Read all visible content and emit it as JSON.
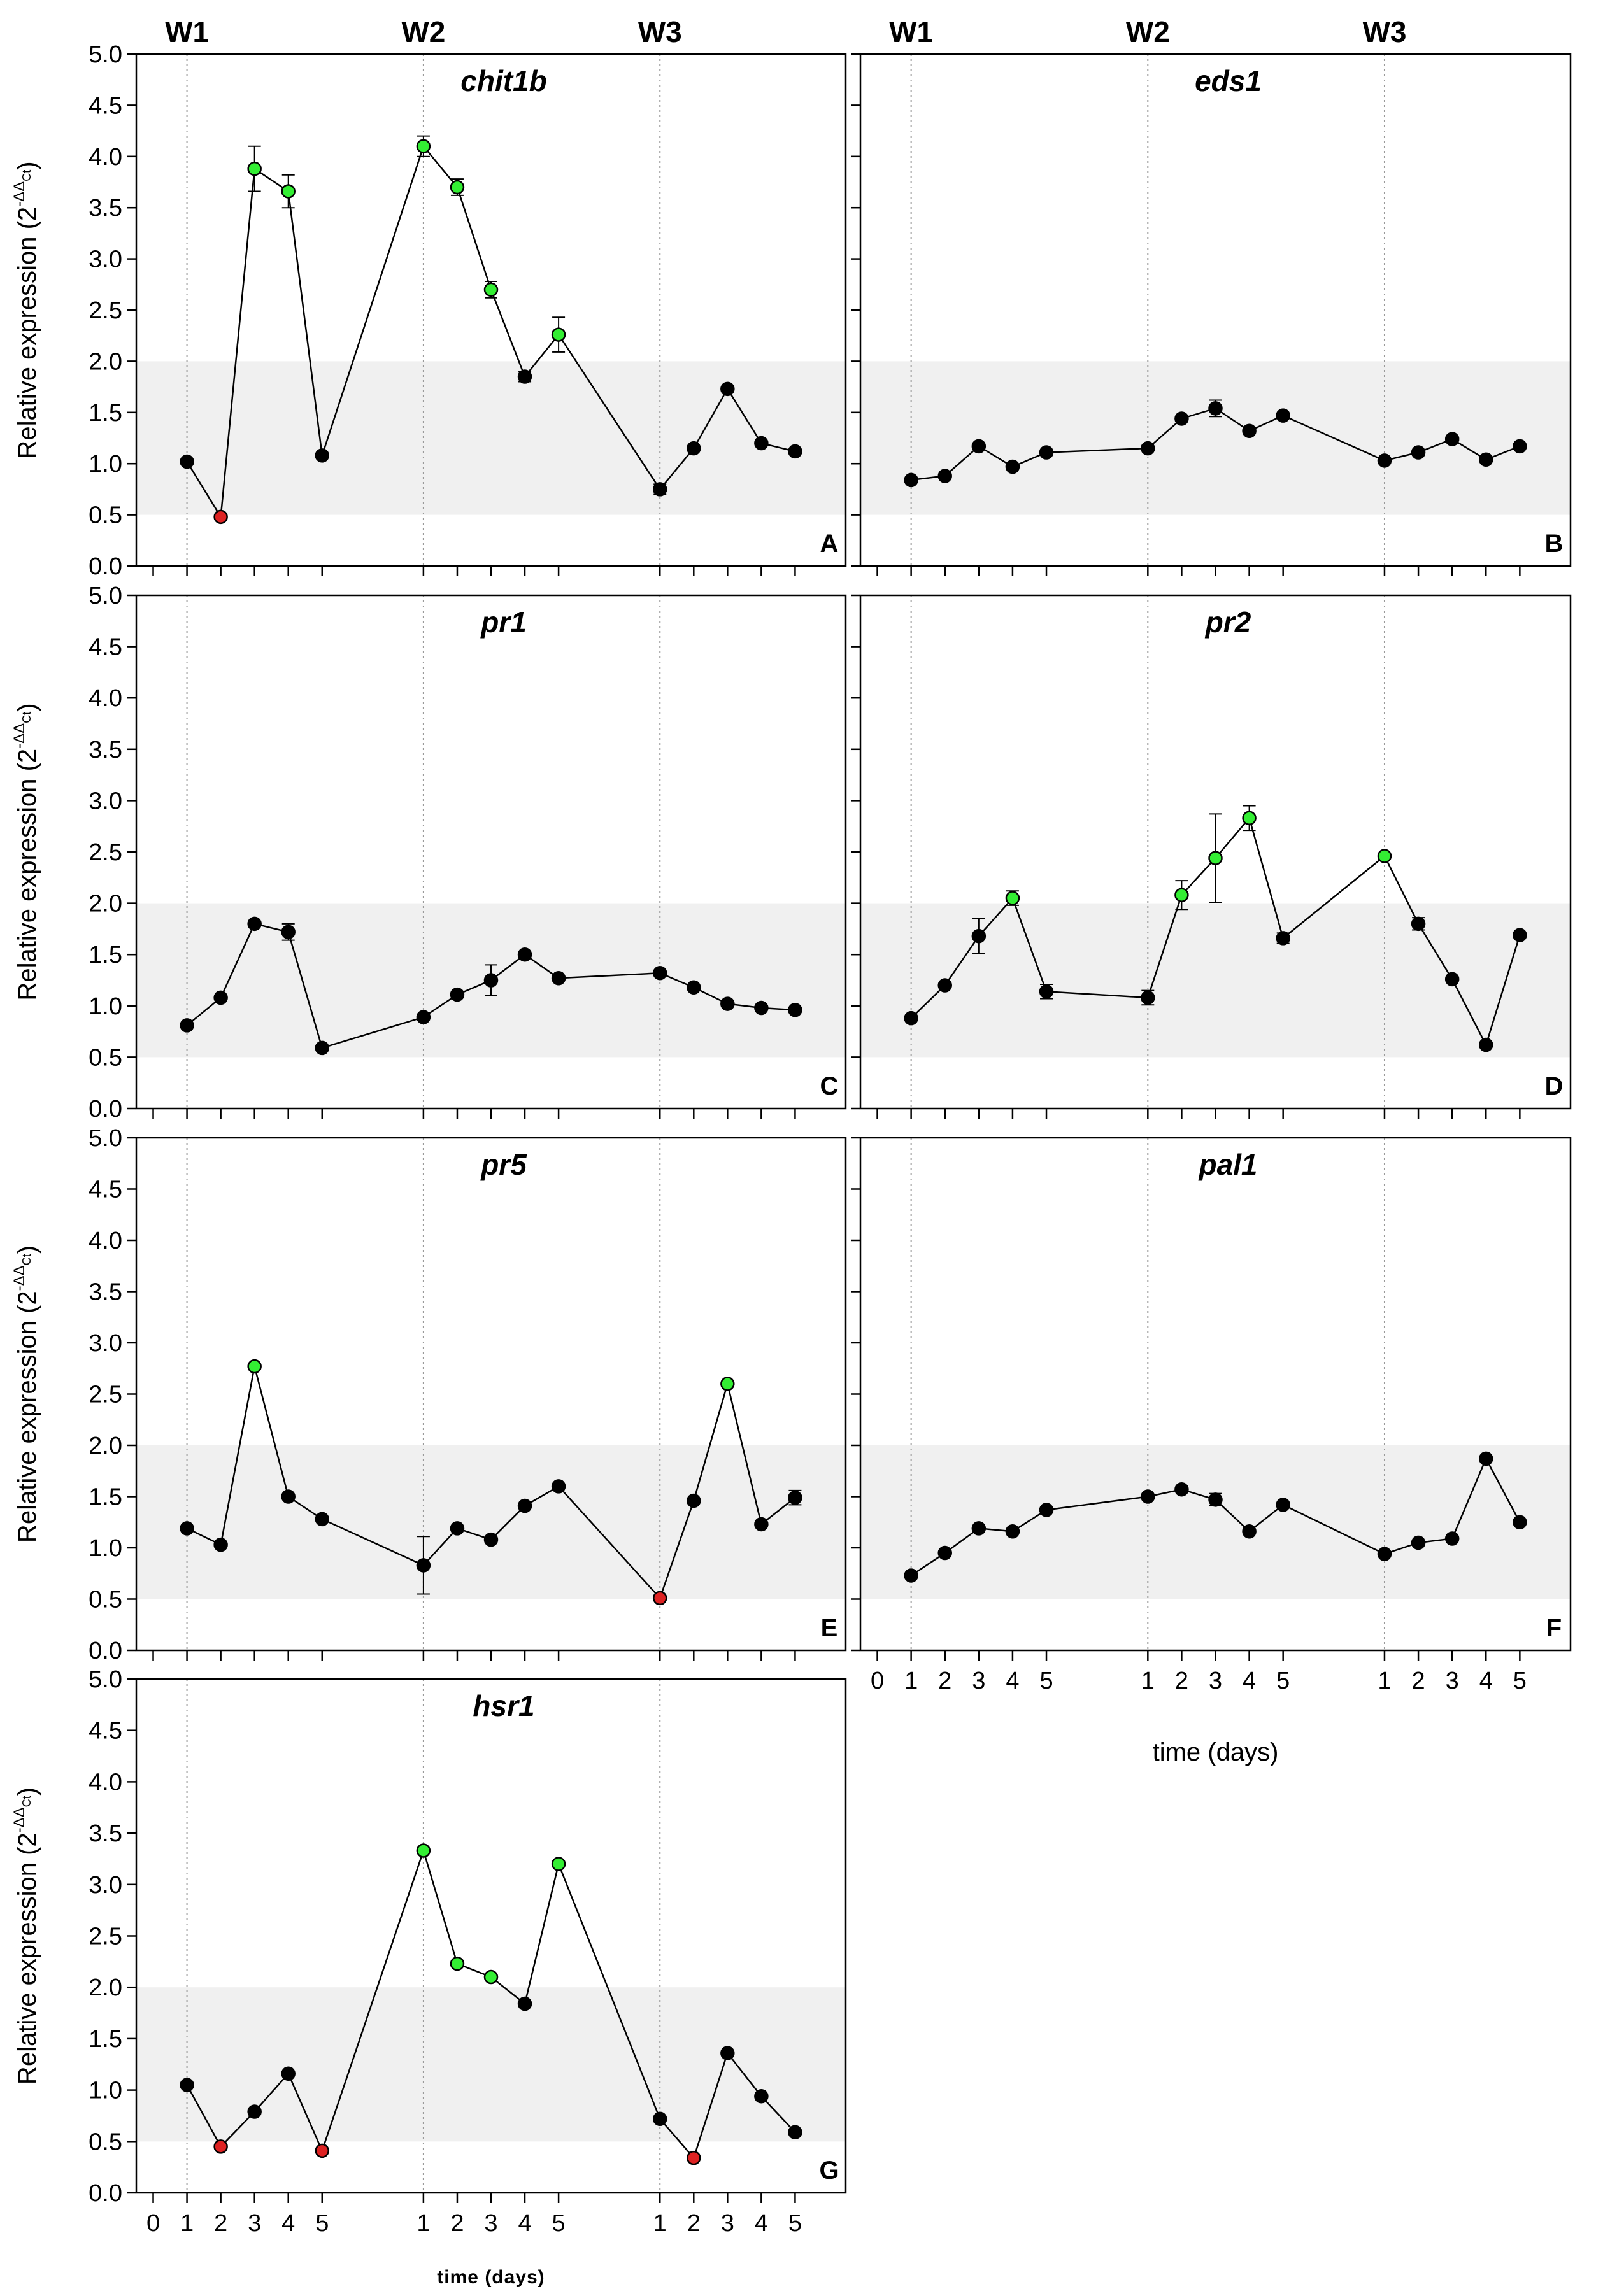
{
  "figure": {
    "y_axis_label_main": "Relative expression (2",
    "y_axis_label_sup": "-ΔΔ",
    "y_axis_label_sub": "Ct",
    "y_axis_label_close": ")",
    "x_axis_label_right": "time (days)",
    "x_axis_label_bottom": "time (days)",
    "week_labels": [
      "W1",
      "W2",
      "W3"
    ],
    "x_tick_labels": [
      "0",
      "1",
      "2",
      "3",
      "4",
      "5",
      "1",
      "2",
      "3",
      "4",
      "5",
      "1",
      "2",
      "3",
      "4",
      "5"
    ],
    "y_tick_labels": [
      "0.0",
      "0.5",
      "1.0",
      "1.5",
      "2.0",
      "2.5",
      "3.0",
      "3.5",
      "4.0",
      "4.5",
      "5.0"
    ],
    "colors": {
      "normal_point": "#000000",
      "up_regulated": "#33ee33",
      "down_regulated": "#dd2222",
      "band": "#f0f0f0"
    }
  },
  "chart_data": [
    {
      "type": "line",
      "gene": "chit1b",
      "panel": "A",
      "x_positions": [
        1,
        2,
        3,
        4,
        5,
        8,
        9,
        10,
        11,
        12,
        15,
        16,
        17,
        18,
        19
      ],
      "x": [
        "W1-1",
        "W1-2",
        "W1-3",
        "W1-4",
        "W1-5",
        "W2-1",
        "W2-2",
        "W2-3",
        "W2-4",
        "W2-5",
        "W3-1",
        "W3-2",
        "W3-3",
        "W3-4",
        "W3-5"
      ],
      "values": [
        1.02,
        0.48,
        3.88,
        3.66,
        1.08,
        4.1,
        3.7,
        2.7,
        1.85,
        2.26,
        0.75,
        1.15,
        1.73,
        1.2,
        1.12
      ],
      "errors": [
        0,
        0,
        0.22,
        0.16,
        0,
        0.1,
        0.08,
        0.08,
        0.05,
        0.17,
        0.05,
        0,
        0,
        0,
        0
      ],
      "status": [
        "n",
        "d",
        "u",
        "u",
        "n",
        "u",
        "u",
        "u",
        "n",
        "u",
        "n",
        "n",
        "n",
        "n",
        "n"
      ],
      "ylim": [
        0,
        5
      ],
      "band": [
        0.5,
        2.0
      ]
    },
    {
      "type": "line",
      "gene": "eds1",
      "panel": "B",
      "x_positions": [
        1,
        2,
        3,
        4,
        5,
        8,
        9,
        10,
        11,
        12,
        15,
        16,
        17,
        18,
        19
      ],
      "x": [
        "W1-1",
        "W1-2",
        "W1-3",
        "W1-4",
        "W1-5",
        "W2-1",
        "W2-2",
        "W2-3",
        "W2-4",
        "W2-5",
        "W3-1",
        "W3-2",
        "W3-3",
        "W3-4",
        "W3-5"
      ],
      "values": [
        0.84,
        0.88,
        1.17,
        0.97,
        1.11,
        1.15,
        1.44,
        1.54,
        1.32,
        1.47,
        1.03,
        1.11,
        1.24,
        1.04,
        1.17
      ],
      "errors": [
        0,
        0,
        0,
        0,
        0,
        0,
        0,
        0.08,
        0,
        0,
        0,
        0,
        0,
        0,
        0
      ],
      "status": [
        "n",
        "n",
        "n",
        "n",
        "n",
        "n",
        "n",
        "n",
        "n",
        "n",
        "n",
        "n",
        "n",
        "n",
        "n"
      ],
      "ylim": [
        0,
        5
      ],
      "band": [
        0.5,
        2.0
      ]
    },
    {
      "type": "line",
      "gene": "pr1",
      "panel": "C",
      "x_positions": [
        1,
        2,
        3,
        4,
        5,
        8,
        9,
        10,
        11,
        12,
        15,
        16,
        17,
        18,
        19
      ],
      "x": [
        "W1-1",
        "W1-2",
        "W1-3",
        "W1-4",
        "W1-5",
        "W2-1",
        "W2-2",
        "W2-3",
        "W2-4",
        "W2-5",
        "W3-1",
        "W3-2",
        "W3-3",
        "W3-4",
        "W3-5"
      ],
      "values": [
        0.81,
        1.08,
        1.8,
        1.72,
        0.59,
        0.89,
        1.11,
        1.25,
        1.5,
        1.27,
        1.32,
        1.18,
        1.02,
        0.98,
        0.96
      ],
      "errors": [
        0,
        0,
        0,
        0.08,
        0,
        0,
        0,
        0.15,
        0,
        0,
        0,
        0,
        0,
        0,
        0
      ],
      "status": [
        "n",
        "n",
        "n",
        "n",
        "n",
        "n",
        "n",
        "n",
        "n",
        "n",
        "n",
        "n",
        "n",
        "n",
        "n"
      ],
      "ylim": [
        0,
        5
      ],
      "band": [
        0.5,
        2.0
      ]
    },
    {
      "type": "line",
      "gene": "pr2",
      "panel": "D",
      "x_positions": [
        1,
        2,
        3,
        4,
        5,
        8,
        9,
        10,
        11,
        12,
        15,
        16,
        17,
        18,
        19
      ],
      "x": [
        "W1-1",
        "W1-2",
        "W1-3",
        "W1-4",
        "W1-5",
        "W2-1",
        "W2-2",
        "W2-3",
        "W2-4",
        "W2-5",
        "W3-1",
        "W3-2",
        "W3-3",
        "W3-4",
        "W3-5"
      ],
      "values": [
        0.88,
        1.2,
        1.68,
        2.05,
        1.14,
        1.08,
        2.08,
        2.44,
        2.83,
        1.66,
        2.46,
        1.8,
        1.26,
        0.62,
        1.69
      ],
      "errors": [
        0,
        0,
        0.17,
        0.07,
        0.07,
        0.07,
        0.14,
        0.43,
        0.12,
        0.05,
        0,
        0.06,
        0,
        0,
        0
      ],
      "status": [
        "n",
        "n",
        "n",
        "u",
        "n",
        "n",
        "u",
        "u",
        "u",
        "n",
        "u",
        "n",
        "n",
        "n",
        "n"
      ],
      "ylim": [
        0,
        5
      ],
      "band": [
        0.5,
        2.0
      ]
    },
    {
      "type": "line",
      "gene": "pr5",
      "panel": "E",
      "x_positions": [
        1,
        2,
        3,
        4,
        5,
        8,
        9,
        10,
        11,
        12,
        15,
        16,
        17,
        18,
        19
      ],
      "x": [
        "W1-1",
        "W1-2",
        "W1-3",
        "W1-4",
        "W1-5",
        "W2-1",
        "W2-2",
        "W2-3",
        "W2-4",
        "W2-5",
        "W3-1",
        "W3-2",
        "W3-3",
        "W3-4",
        "W3-5"
      ],
      "values": [
        1.19,
        1.03,
        2.77,
        1.5,
        1.28,
        0.83,
        1.19,
        1.08,
        1.41,
        1.6,
        0.51,
        1.46,
        2.6,
        1.23,
        1.49
      ],
      "errors": [
        0,
        0,
        0,
        0,
        0,
        0.28,
        0,
        0,
        0,
        0,
        0,
        0,
        0,
        0,
        0.07
      ],
      "status": [
        "n",
        "n",
        "u",
        "n",
        "n",
        "n",
        "n",
        "n",
        "n",
        "n",
        "d",
        "n",
        "u",
        "n",
        "n"
      ],
      "ylim": [
        0,
        5
      ],
      "band": [
        0.5,
        2.0
      ]
    },
    {
      "type": "line",
      "gene": "pal1",
      "panel": "F",
      "x_positions": [
        1,
        2,
        3,
        4,
        5,
        8,
        9,
        10,
        11,
        12,
        15,
        16,
        17,
        18,
        19
      ],
      "x": [
        "W1-1",
        "W1-2",
        "W1-3",
        "W1-4",
        "W1-5",
        "W2-1",
        "W2-2",
        "W2-3",
        "W2-4",
        "W2-5",
        "W3-1",
        "W3-2",
        "W3-3",
        "W3-4",
        "W3-5"
      ],
      "values": [
        0.73,
        0.95,
        1.19,
        1.16,
        1.37,
        1.5,
        1.57,
        1.47,
        1.16,
        1.42,
        0.94,
        1.05,
        1.09,
        1.87,
        1.25
      ],
      "errors": [
        0,
        0,
        0,
        0,
        0,
        0,
        0,
        0.06,
        0,
        0,
        0,
        0,
        0,
        0,
        0
      ],
      "status": [
        "n",
        "n",
        "n",
        "n",
        "n",
        "n",
        "n",
        "n",
        "n",
        "n",
        "n",
        "n",
        "n",
        "n",
        "n"
      ],
      "ylim": [
        0,
        5
      ],
      "band": [
        0.5,
        2.0
      ]
    },
    {
      "type": "line",
      "gene": "hsr1",
      "panel": "G",
      "x_positions": [
        1,
        2,
        3,
        4,
        5,
        8,
        9,
        10,
        11,
        12,
        15,
        16,
        17,
        18,
        19
      ],
      "x": [
        "W1-1",
        "W1-2",
        "W1-3",
        "W1-4",
        "W1-5",
        "W2-1",
        "W2-2",
        "W2-3",
        "W2-4",
        "W2-5",
        "W3-1",
        "W3-2",
        "W3-3",
        "W3-4",
        "W3-5"
      ],
      "values": [
        1.05,
        0.45,
        0.79,
        1.16,
        0.41,
        3.33,
        2.23,
        2.1,
        1.84,
        3.2,
        0.72,
        0.34,
        1.36,
        0.94,
        0.59
      ],
      "errors": [
        0,
        0,
        0,
        0,
        0,
        0,
        0,
        0,
        0,
        0,
        0,
        0,
        0,
        0,
        0
      ],
      "status": [
        "n",
        "d",
        "n",
        "n",
        "d",
        "u",
        "u",
        "u",
        "n",
        "u",
        "n",
        "d",
        "n",
        "n",
        "n"
      ],
      "ylim": [
        0,
        5
      ],
      "band": [
        0.5,
        2.0
      ]
    }
  ]
}
